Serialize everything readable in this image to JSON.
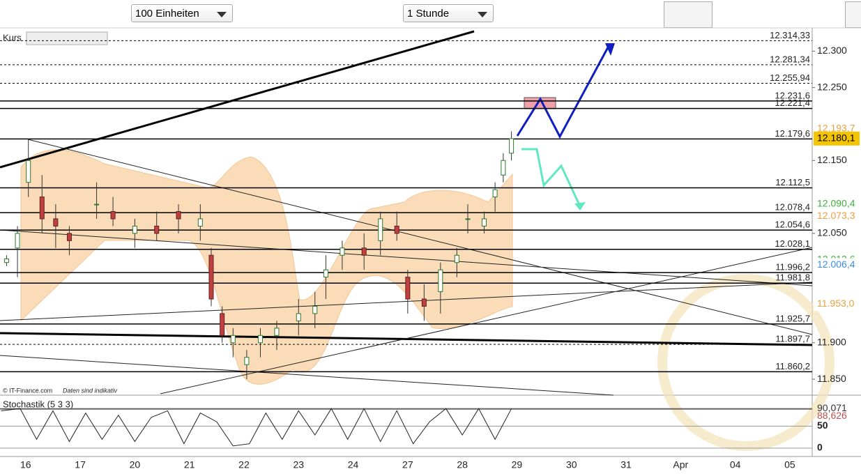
{
  "toolbar": {
    "units": "100 Einheiten",
    "interval": "1 Stunde"
  },
  "panel_label": "Kurs",
  "copyright": "© IT-Finance.com",
  "disclaimer": "Daten sind indikativ",
  "chart_data": {
    "type": "candlestick",
    "categories": [
      "16",
      "17",
      "20",
      "21",
      "22",
      "23",
      "24",
      "27",
      "28",
      "29",
      "30",
      "31",
      "Apr",
      "04",
      "05"
    ],
    "xlim": [
      -0.47,
      14.41
    ],
    "ylim": [
      11.83,
      12.33
    ],
    "yticks": [
      {
        "value": 12.3,
        "label": "12.300"
      },
      {
        "value": 12.25,
        "label": "12.250"
      },
      {
        "value": 12.15,
        "label": "12.150"
      },
      {
        "value": 12.05,
        "label": "12.050"
      },
      {
        "value": 11.9,
        "label": "11.900"
      },
      {
        "value": 11.85,
        "label": "11.850"
      }
    ],
    "levels": [
      {
        "value": 12.31433,
        "label": "12.314,33",
        "dashed": true
      },
      {
        "value": 12.28134,
        "label": "12.281,34",
        "dashed": true
      },
      {
        "value": 12.25594,
        "label": "12.255,94",
        "dashed": true
      },
      {
        "value": 12.2316,
        "label": "12.231,6",
        "dashed": false
      },
      {
        "value": 12.2214,
        "label": "12.221,4",
        "dashed": false
      },
      {
        "value": 12.1796,
        "label": "12.179,6",
        "dashed": false
      },
      {
        "value": 12.1125,
        "label": "12.112,5",
        "dashed": false
      },
      {
        "value": 12.0784,
        "label": "12.078,4",
        "dashed": false
      },
      {
        "value": 12.0546,
        "label": "12.054,6",
        "dashed": false
      },
      {
        "value": 12.0281,
        "label": "12.028,1",
        "dashed": false
      },
      {
        "value": 11.9962,
        "label": "11.996,2",
        "dashed": false
      },
      {
        "value": 11.9818,
        "label": "11.981,8",
        "dashed": false
      },
      {
        "value": 11.9257,
        "label": "11.925,7",
        "dashed": false
      },
      {
        "value": 11.8977,
        "label": "11.897,7",
        "dashed": true
      },
      {
        "value": 11.8602,
        "label": "11.860,2",
        "dashed": false
      }
    ],
    "badges": [
      {
        "value": 12.1937,
        "label": "12.193,7",
        "color": "#e8a040",
        "bg": "#fff"
      },
      {
        "value": 12.1801,
        "label": "12.180,1",
        "color": "#000",
        "bg": "#f5c400"
      },
      {
        "value": 12.0904,
        "label": "12.090,4",
        "color": "#3cb03c",
        "bg": "#fff"
      },
      {
        "value": 12.0733,
        "label": "12.073,3",
        "color": "#e8a040",
        "bg": "#fff"
      },
      {
        "value": 12.0136,
        "label": "12.013,6",
        "color": "#3cb03c",
        "bg": "#fff"
      },
      {
        "value": 12.0064,
        "label": "12.006,4",
        "color": "#3a8ee0",
        "bg": "#fff"
      },
      {
        "value": 11.953,
        "label": "11.953,0",
        "color": "#e8a040",
        "bg": "#fff"
      }
    ],
    "candles": [
      [
        -0.35,
        12.01,
        12.02,
        12.005,
        12.015
      ],
      [
        -0.15,
        12.03,
        12.06,
        11.99,
        12.05
      ],
      [
        0.05,
        12.12,
        12.18,
        12.1,
        12.15
      ],
      [
        0.3,
        12.1,
        12.13,
        12.05,
        12.07
      ],
      [
        0.55,
        12.07,
        12.09,
        12.03,
        12.06
      ],
      [
        0.8,
        12.05,
        12.06,
        12.02,
        12.04
      ],
      [
        1.3,
        12.09,
        12.12,
        12.07,
        12.09
      ],
      [
        1.6,
        12.08,
        12.1,
        12.06,
        12.07
      ],
      [
        2.0,
        12.05,
        12.07,
        12.03,
        12.06
      ],
      [
        2.4,
        12.06,
        12.08,
        12.04,
        12.05
      ],
      [
        2.8,
        12.08,
        12.09,
        12.05,
        12.07
      ],
      [
        3.2,
        12.06,
        12.09,
        12.04,
        12.07
      ],
      [
        3.4,
        12.02,
        12.03,
        11.95,
        11.96
      ],
      [
        3.6,
        11.94,
        11.95,
        11.9,
        11.91
      ],
      [
        3.8,
        11.9,
        11.92,
        11.88,
        11.91
      ],
      [
        4.05,
        11.87,
        11.89,
        11.85,
        11.88
      ],
      [
        4.3,
        11.9,
        11.92,
        11.88,
        11.91
      ],
      [
        4.6,
        11.91,
        11.93,
        11.89,
        11.92
      ],
      [
        5.0,
        11.93,
        11.96,
        11.91,
        11.94
      ],
      [
        5.3,
        11.94,
        11.97,
        11.92,
        11.95
      ],
      [
        5.5,
        11.99,
        12.02,
        11.96,
        12.0
      ],
      [
        5.8,
        12.02,
        12.04,
        12.0,
        12.03
      ],
      [
        6.2,
        12.03,
        12.05,
        12.0,
        12.02
      ],
      [
        6.5,
        12.04,
        12.08,
        12.02,
        12.07
      ],
      [
        6.8,
        12.06,
        12.08,
        12.04,
        12.05
      ],
      [
        7.0,
        11.99,
        12.0,
        11.94,
        11.96
      ],
      [
        7.3,
        11.96,
        11.98,
        11.93,
        11.95
      ],
      [
        7.6,
        11.97,
        12.01,
        11.94,
        12.0
      ],
      [
        7.9,
        12.01,
        12.03,
        11.99,
        12.02
      ],
      [
        8.1,
        12.07,
        12.09,
        12.05,
        12.07
      ],
      [
        8.4,
        12.06,
        12.08,
        12.05,
        12.07
      ],
      [
        8.6,
        12.1,
        12.12,
        12.08,
        12.11
      ],
      [
        8.75,
        12.13,
        12.16,
        12.12,
        12.15
      ],
      [
        8.9,
        12.16,
        12.19,
        12.15,
        12.18
      ]
    ]
  },
  "stochastic": {
    "label": "Stochastik (5 3 3)",
    "ylim": [
      0,
      100
    ],
    "yticks": [
      0,
      50
    ],
    "badges": [
      {
        "value": 90.071,
        "label": "90,071",
        "color": "#333"
      },
      {
        "value": 88.626,
        "label": "88,626",
        "color": "#c05050"
      }
    ],
    "x": [
      -0.45,
      -0.1,
      0.2,
      0.5,
      0.8,
      1.1,
      1.4,
      1.7,
      2.0,
      2.3,
      2.6,
      2.9,
      3.2,
      3.5,
      3.8,
      4.1,
      4.4,
      4.7,
      5.0,
      5.3,
      5.6,
      5.9,
      6.2,
      6.5,
      6.8,
      7.1,
      7.4,
      7.7,
      8.0,
      8.3,
      8.6,
      8.9
    ],
    "k": [
      85,
      90,
      20,
      85,
      15,
      80,
      20,
      75,
      15,
      70,
      85,
      10,
      80,
      60,
      5,
      10,
      80,
      20,
      85,
      30,
      90,
      20,
      90,
      15,
      85,
      10,
      60,
      90,
      30,
      90,
      20,
      90
    ]
  }
}
